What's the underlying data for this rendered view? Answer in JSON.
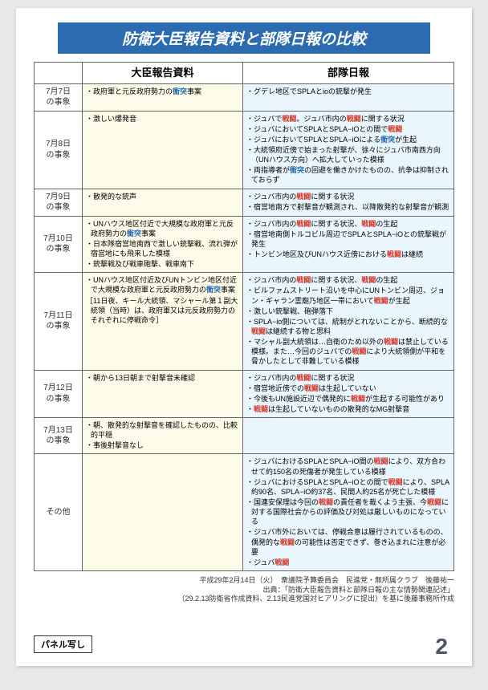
{
  "title": "防衛大臣報告資料と部隊日報の比較",
  "headers": {
    "col1": "大臣報告資料",
    "col2": "部隊日報"
  },
  "rows": [
    {
      "date": "7月7日\nの事象",
      "col1": [
        [
          {
            "t": "・政府軍と元反政府勢力の"
          },
          {
            "t": "衝突",
            "c": "hl-blue"
          },
          {
            "t": "事案"
          }
        ]
      ],
      "col2": [
        [
          {
            "t": "・グデレ地区でSPLAとioの銃撃が発生"
          }
        ]
      ]
    },
    {
      "date": "7月8日\nの事象",
      "col1": [
        [
          {
            "t": "・激しい爆発音"
          }
        ]
      ],
      "col2": [
        [
          {
            "t": "・ジュバで"
          },
          {
            "t": "戦闘",
            "c": "hl-red"
          },
          {
            "t": "。ジュバ市内の"
          },
          {
            "t": "戦闘",
            "c": "hl-red"
          },
          {
            "t": "に関する状況"
          }
        ],
        [
          {
            "t": "・ジュバにおいてSPLAとSPLA−iOとの間で"
          },
          {
            "t": "戦闘",
            "c": "hl-red"
          }
        ],
        [
          {
            "t": "・ジュバにおいてSPLAとSPLA−iOによる"
          },
          {
            "t": "衝突",
            "c": "hl-blue"
          },
          {
            "t": "が生起"
          }
        ],
        [
          {
            "t": "・大統領府近傍で始まった射撃が、徐々にジュバ市南西方向（UNハウス方向）へ拡大していった模様"
          }
        ],
        [
          {
            "t": "・両指導者が"
          },
          {
            "t": "衝突",
            "c": "hl-blue"
          },
          {
            "t": "の回避を働きかけたものの、抗争は抑制されておらず"
          }
        ]
      ]
    },
    {
      "date": "7月9日\nの事象",
      "col1": [
        [
          {
            "t": "・散発的な銃声"
          }
        ]
      ],
      "col2": [
        [
          {
            "t": "・ジュバ市内の"
          },
          {
            "t": "戦闘",
            "c": "hl-red"
          },
          {
            "t": "に関する状況"
          }
        ],
        [
          {
            "t": "・宿営地南方で射撃音が観測され、以降散発的な射撃音が観測"
          }
        ]
      ]
    },
    {
      "date": "7月10日\nの事象",
      "col1": [
        [
          {
            "t": "・UNハウス地区付近で大規模な政府軍と元反政府勢力の"
          },
          {
            "t": "衝突",
            "c": "hl-blue"
          },
          {
            "t": "事案"
          }
        ],
        [
          {
            "t": "・日本隊宿営地南西で激しい銃撃戦、流れ弾が宿営地にも飛来した模様"
          }
        ],
        [
          {
            "t": "・銃撃戦及び戦車砲撃、戦車南下"
          }
        ]
      ],
      "col2": [
        [
          {
            "t": "・ジュバ市内の"
          },
          {
            "t": "戦闘",
            "c": "hl-red"
          },
          {
            "t": "に関する状況、"
          },
          {
            "t": "戦闘",
            "c": "hl-red"
          },
          {
            "t": "の生起"
          }
        ],
        [
          {
            "t": "・宿営地南側トルコビル周辺でSPLAとSPLA−iOとの銃撃戦が発生"
          }
        ],
        [
          {
            "t": "・トンビン地区及びUNハウス近傍における"
          },
          {
            "t": "戦闘",
            "c": "hl-red"
          },
          {
            "t": "は継続"
          }
        ]
      ]
    },
    {
      "date": "7月11日\nの事象",
      "col1": [
        [
          {
            "t": "・UNハウス地区付近及びUNトンビン地区付近で大規模な政府軍と元反政府勢力の"
          },
          {
            "t": "衝突",
            "c": "hl-blue"
          },
          {
            "t": "事案"
          }
        ],
        [
          {
            "t": "［11日夜、キール大統領、マシャール第１副大統領（当時）は、政府軍又は元反政府勢力のそれぞれに停戦命令］"
          }
        ]
      ],
      "col2": [
        [
          {
            "t": "・ジュバ市内の"
          },
          {
            "t": "戦闘",
            "c": "hl-red"
          },
          {
            "t": "に関する状況、"
          },
          {
            "t": "戦闘",
            "c": "hl-red"
          },
          {
            "t": "の生起"
          }
        ],
        [
          {
            "t": "・ビルファムストリート沿いを中心にUNトンビン周辺、ジョン・ギャラン霊廟乃地区一帯において"
          },
          {
            "t": "戦闘",
            "c": "hl-red"
          },
          {
            "t": "が生起"
          }
        ],
        [
          {
            "t": "・激しい銃撃戦、砲弾落下"
          }
        ],
        [
          {
            "t": "・SPLA−io側については、統制がとれないことから、断続的な"
          },
          {
            "t": "戦闘",
            "c": "hl-red"
          },
          {
            "t": "は継続する物と思料"
          }
        ],
        [
          {
            "t": "・マシャル副大統領は…自衛のため以外の"
          },
          {
            "t": "戦闘",
            "c": "hl-red"
          },
          {
            "t": "は禁止している模様。また…今回のジュバでの"
          },
          {
            "t": "戦闘",
            "c": "hl-red"
          },
          {
            "t": "により大統領側が平和を脅かしたとして非難している模様"
          }
        ]
      ]
    },
    {
      "date": "7月12日\nの事象",
      "col1": [
        [
          {
            "t": "・朝から13日朝まで射撃音未確認"
          }
        ]
      ],
      "col2": [
        [
          {
            "t": "・ジュバ市内の"
          },
          {
            "t": "戦闘",
            "c": "hl-red"
          },
          {
            "t": "に関する状況"
          }
        ],
        [
          {
            "t": "・宿営地近傍での"
          },
          {
            "t": "戦闘",
            "c": "hl-red"
          },
          {
            "t": "は生起していない"
          }
        ],
        [
          {
            "t": "・今後もUN施設近辺で偶発的に"
          },
          {
            "t": "戦闘",
            "c": "hl-red"
          },
          {
            "t": "が生起する可能性があり"
          }
        ],
        [
          {
            "t": "・"
          },
          {
            "t": "戦闘",
            "c": "hl-red"
          },
          {
            "t": "は生起していないものの散発的なMG射撃音"
          }
        ]
      ]
    },
    {
      "date": "7月13日\nの事象",
      "col1": [
        [
          {
            "t": "・朝、散発的な射撃音を確認したものの、比較的平穏"
          }
        ],
        [
          {
            "t": "・事後射撃音なし"
          }
        ]
      ],
      "col2": []
    },
    {
      "date": "その他",
      "col1": [],
      "col2": [
        [
          {
            "t": "・ジュバにおけるSPLAとSPLA−iO間の"
          },
          {
            "t": "戦闘",
            "c": "hl-red"
          },
          {
            "t": "により、双方合わせて約150名の死傷者が発生している模様"
          }
        ],
        [
          {
            "t": "・ジュバにおけるSPLAとSPLA−iOとの間で"
          },
          {
            "t": "戦闘",
            "c": "hl-red"
          },
          {
            "t": "により、SPLA約90名、SPLA−iO約37名、民間人約25名が死亡した模様"
          }
        ],
        [
          {
            "t": "・国連安保理は今回の"
          },
          {
            "t": "戦闘",
            "c": "hl-red"
          },
          {
            "t": "の責任者を裁くよう主張、今"
          },
          {
            "t": "戦闘",
            "c": "hl-red"
          },
          {
            "t": "に対する国際社会からの評価及び対処は厳しいものになっている"
          }
        ],
        [
          {
            "t": "・ジュバ市外においては、停戦合意は履行されているものの、偶発的な"
          },
          {
            "t": "戦闘",
            "c": "hl-red"
          },
          {
            "t": "の可能性は否定できず、巻き込まれに注意が必要"
          }
        ],
        [
          {
            "t": "・ジュバ"
          },
          {
            "t": "戦闘",
            "c": "hl-red"
          }
        ]
      ]
    }
  ],
  "footer": {
    "line1": "平成29年2月14日（火）　衆議院予算委員会　民進党・無所属クラブ　後藤祐一",
    "line2": "出典：「防衛大臣報告資料と部隊日報の主な情勢関連記述」",
    "line3": "（29.2.13防衛省作成資料、2.13民進党国対ヒアリングに提出）を基に後藤事務所作成"
  },
  "panel_label": "パネル写し",
  "page_number": "2"
}
